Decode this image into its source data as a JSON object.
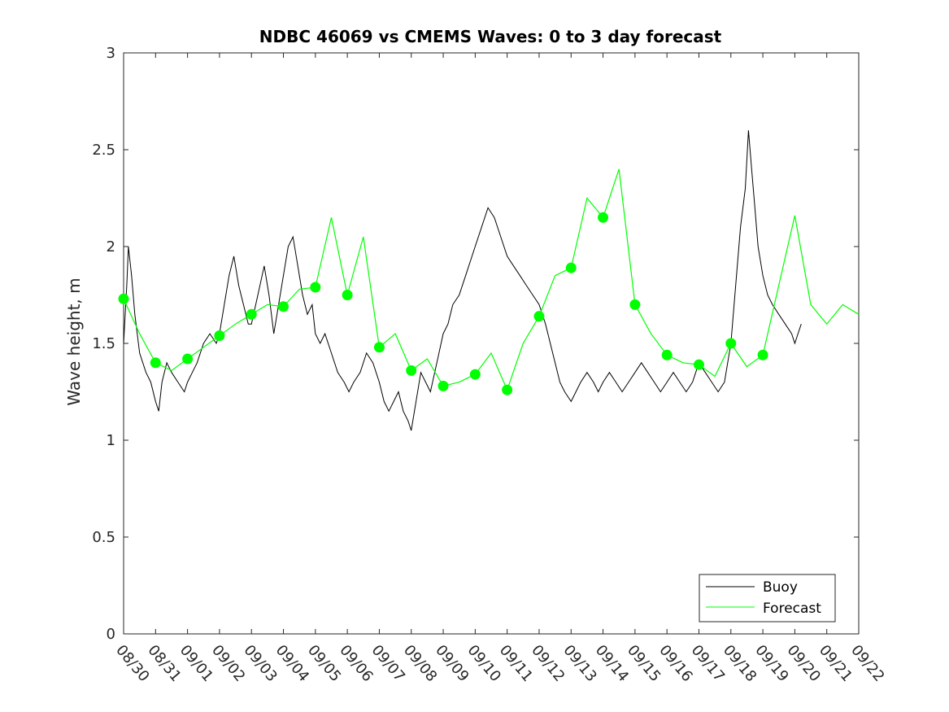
{
  "chart_data": {
    "type": "line",
    "title": "NDBC 46069 vs CMEMS Waves: 0 to 3 day forecast",
    "xlabel": "",
    "ylabel": "Wave height, m",
    "xlim": [
      "08/30",
      "09/22"
    ],
    "ylim": [
      0,
      3
    ],
    "y_ticks": [
      "0",
      "0.5",
      "1",
      "1.5",
      "2",
      "2.5",
      "3"
    ],
    "x_ticks": [
      "08/30",
      "08/31",
      "09/01",
      "09/02",
      "09/03",
      "09/04",
      "09/05",
      "09/06",
      "09/07",
      "09/08",
      "09/09",
      "09/10",
      "09/11",
      "09/12",
      "09/13",
      "09/14",
      "09/15",
      "09/16",
      "09/17",
      "09/18",
      "09/19",
      "09/20",
      "09/21",
      "09/22"
    ],
    "grid": false,
    "legend": {
      "placement": "bottom-right",
      "entries": [
        "Buoy",
        "Forecast"
      ]
    },
    "colors": {
      "buoy": "#000000",
      "forecast": "#00ff00"
    },
    "series": [
      {
        "name": "Buoy",
        "x_days": [
          0.0,
          0.1,
          0.15,
          0.25,
          0.35,
          0.5,
          0.7,
          0.85,
          1.0,
          1.1,
          1.2,
          1.35,
          1.5,
          1.7,
          1.9,
          2.0,
          2.15,
          2.3,
          2.5,
          2.7,
          2.9,
          3.0,
          3.15,
          3.3,
          3.45,
          3.6,
          3.75,
          3.9,
          4.0,
          4.2,
          4.4,
          4.55,
          4.7,
          4.85,
          5.0,
          5.15,
          5.3,
          5.45,
          5.6,
          5.75,
          5.9,
          6.0,
          6.15,
          6.3,
          6.5,
          6.7,
          6.9,
          7.05,
          7.2,
          7.4,
          7.6,
          7.8,
          8.0,
          8.15,
          8.3,
          8.45,
          8.6,
          8.75,
          8.9,
          9.0,
          9.15,
          9.3,
          9.45,
          9.6,
          9.8,
          10.0,
          10.15,
          10.3,
          10.5,
          10.7,
          10.9,
          11.0,
          11.2,
          11.4,
          11.6,
          11.8,
          12.0,
          12.2,
          12.4,
          12.6,
          12.8,
          13.0,
          13.2,
          13.35,
          13.5,
          13.65,
          13.8,
          14.0,
          14.15,
          14.3,
          14.5,
          14.7,
          14.85,
          15.0,
          15.2,
          15.4,
          15.6,
          15.8,
          16.0,
          16.2,
          16.4,
          16.6,
          16.8,
          17.0,
          17.2,
          17.4,
          17.6,
          17.8,
          18.0,
          18.2,
          18.4,
          18.6,
          18.8,
          19.0,
          19.15,
          19.3,
          19.45,
          19.55,
          19.65,
          19.75,
          19.85,
          20.0,
          20.15,
          20.3,
          20.5,
          20.7,
          20.9,
          21.0,
          21.1,
          21.2
        ],
        "values": [
          1.5,
          1.8,
          2.0,
          1.85,
          1.65,
          1.45,
          1.35,
          1.3,
          1.2,
          1.15,
          1.3,
          1.4,
          1.35,
          1.3,
          1.25,
          1.3,
          1.35,
          1.4,
          1.5,
          1.55,
          1.5,
          1.55,
          1.7,
          1.85,
          1.95,
          1.8,
          1.7,
          1.6,
          1.6,
          1.75,
          1.9,
          1.75,
          1.55,
          1.7,
          1.85,
          2.0,
          2.05,
          1.9,
          1.75,
          1.65,
          1.7,
          1.55,
          1.5,
          1.55,
          1.45,
          1.35,
          1.3,
          1.25,
          1.3,
          1.35,
          1.45,
          1.4,
          1.3,
          1.2,
          1.15,
          1.2,
          1.25,
          1.15,
          1.1,
          1.05,
          1.2,
          1.35,
          1.3,
          1.25,
          1.4,
          1.55,
          1.6,
          1.7,
          1.75,
          1.85,
          1.95,
          2.0,
          2.1,
          2.2,
          2.15,
          2.05,
          1.95,
          1.9,
          1.85,
          1.8,
          1.75,
          1.7,
          1.6,
          1.5,
          1.4,
          1.3,
          1.25,
          1.2,
          1.25,
          1.3,
          1.35,
          1.3,
          1.25,
          1.3,
          1.35,
          1.3,
          1.25,
          1.3,
          1.35,
          1.4,
          1.35,
          1.3,
          1.25,
          1.3,
          1.35,
          1.3,
          1.25,
          1.3,
          1.4,
          1.35,
          1.3,
          1.25,
          1.3,
          1.5,
          1.8,
          2.1,
          2.3,
          2.6,
          2.4,
          2.2,
          2.0,
          1.85,
          1.75,
          1.7,
          1.65,
          1.6,
          1.55,
          1.5,
          1.55,
          1.6
        ]
      },
      {
        "name": "Forecast",
        "marker_x_days": [
          0,
          1,
          2,
          3,
          4,
          5,
          6,
          7,
          8,
          9,
          10,
          11,
          12,
          13,
          14,
          15,
          16,
          17,
          18,
          19,
          20
        ],
        "marker_values": [
          1.73,
          1.4,
          1.42,
          1.54,
          1.65,
          1.69,
          1.79,
          1.75,
          1.48,
          1.36,
          1.28,
          1.34,
          1.26,
          1.64,
          1.89,
          2.15,
          1.7,
          1.44,
          1.39,
          1.5,
          1.44
        ],
        "x_days": [
          0,
          0.5,
          1,
          1.5,
          2,
          2.5,
          3,
          3.5,
          4,
          4.5,
          5,
          5.5,
          6,
          6.5,
          7,
          7.5,
          8,
          8.5,
          9,
          9.5,
          10,
          10.5,
          11,
          11.5,
          12,
          12.5,
          13,
          13.5,
          14,
          14.5,
          15,
          15.5,
          16,
          16.5,
          17,
          17.5,
          18,
          18.5,
          19,
          19.5,
          20,
          20.5,
          21,
          21.5,
          22,
          22.5,
          23
        ],
        "values": [
          1.73,
          1.55,
          1.4,
          1.36,
          1.42,
          1.48,
          1.54,
          1.6,
          1.65,
          1.7,
          1.69,
          1.78,
          1.79,
          2.15,
          1.75,
          2.05,
          1.48,
          1.55,
          1.36,
          1.42,
          1.28,
          1.3,
          1.34,
          1.45,
          1.26,
          1.5,
          1.64,
          1.85,
          1.89,
          2.25,
          2.15,
          2.4,
          1.7,
          1.55,
          1.44,
          1.4,
          1.39,
          1.33,
          1.5,
          1.38,
          1.44,
          1.8,
          2.16,
          1.7,
          1.6,
          1.7,
          1.65
        ]
      }
    ]
  }
}
